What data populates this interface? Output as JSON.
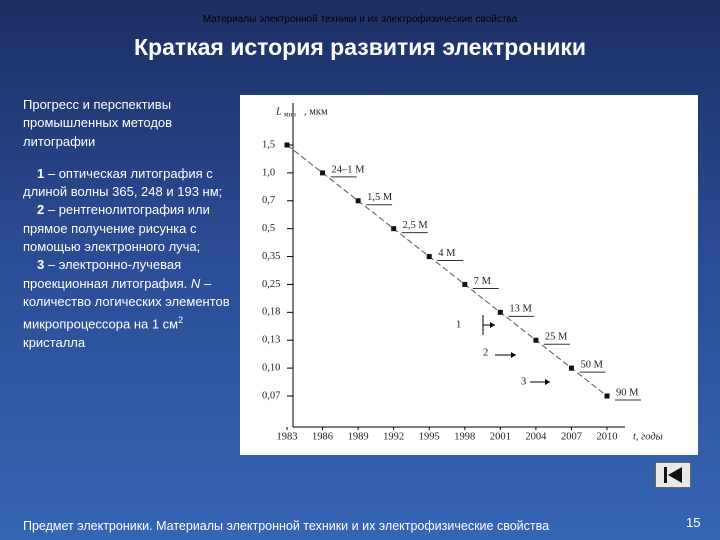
{
  "header": "Материалы электронной техники и их электрофизические свойства",
  "title": "Краткая история развития электроники",
  "sidebar": {
    "intro": "Прогресс и перспективы промышленных методов литографии",
    "items": [
      {
        "number": "1",
        "text": "– оптическая литография с длиной волны 365, 248 и 193 нм;"
      },
      {
        "number": "2",
        "text": "– рентгенолитография или прямое получение рисунка с помощью электронного луча;"
      },
      {
        "number": "3",
        "text": "– электронно-лучевая проекционная литография."
      }
    ],
    "note": {
      "symbol": "N",
      "text": "– количество логических элементов микропроцессора на 1 см",
      "superscript": "2",
      "tail": "кристалла"
    }
  },
  "chart_data": {
    "type": "scatter",
    "y_label": "L",
    "y_label_sub": "мин",
    "y_label_unit": ", мкм",
    "x_label": "t, годы",
    "x": [
      1983,
      1986,
      1989,
      1992,
      1995,
      1998,
      2001,
      2004,
      2007,
      2010
    ],
    "series": [
      {
        "color": "#111111",
        "values": [
          1.5,
          1.0,
          0.7,
          0.5,
          0.35,
          0.25,
          0.18,
          0.13,
          0.1,
          0.07
        ]
      }
    ],
    "point_labels": [
      null,
      "24–1 М",
      "1,5 М",
      "2,5 М",
      "4 М",
      "7 М",
      "13 М",
      "25 М",
      "50 М",
      "90 М"
    ],
    "xlim": [
      1983,
      2010
    ],
    "xticks": [
      1983,
      1986,
      1989,
      1992,
      1995,
      1998,
      2001,
      2004,
      2007,
      2010
    ],
    "ylim": [
      0.07,
      1.5
    ],
    "yticks": [
      {
        "value": 1.5,
        "label": "1,5"
      },
      {
        "value": 1.0,
        "label": "1,0"
      },
      {
        "value": 0.7,
        "label": "0,7"
      },
      {
        "value": 0.5,
        "label": "0,5"
      },
      {
        "value": 0.35,
        "label": "0,35"
      },
      {
        "value": 0.25,
        "label": "0,25"
      },
      {
        "value": 0.18,
        "label": "0,18"
      },
      {
        "value": 0.13,
        "label": "0,13"
      },
      {
        "value": 0.1,
        "label": "0,10"
      },
      {
        "value": 0.07,
        "label": "0,07"
      }
    ],
    "annotations": [
      "1",
      "2",
      "3"
    ]
  },
  "footer": "Предмет электроники. Материалы электронной техники и их электрофизические свойства",
  "page_number": "15"
}
